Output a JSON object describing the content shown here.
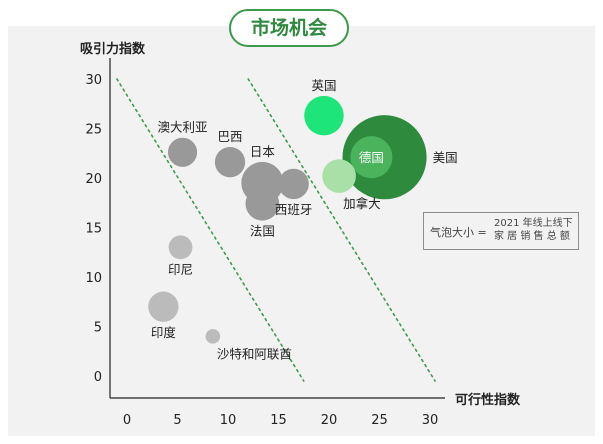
{
  "header": {
    "title": "市场机会"
  },
  "legend": {
    "label": "气泡大小 =",
    "line1": "2021 年线上线下",
    "line2": "家 居 销 售 总 额"
  },
  "chart_data": {
    "type": "scatter",
    "subtype": "bubble",
    "xlabel": "可行性指数",
    "ylabel": "吸引力指数",
    "xlim": [
      -2,
      31
    ],
    "ylim": [
      -2,
      31
    ],
    "xticks": [
      0,
      5,
      10,
      15,
      20,
      25,
      30
    ],
    "yticks": [
      0,
      5,
      10,
      15,
      20,
      25,
      30
    ],
    "grid": false,
    "points": [
      {
        "label": "英国",
        "x": 19.5,
        "y": 26.3,
        "size": 2.2,
        "color": "#1de57a",
        "label_pos": "above"
      },
      {
        "label": "美国",
        "x": 25.5,
        "y": 22.1,
        "size": 10.0,
        "color": "#2e8b3d",
        "label_pos": "right"
      },
      {
        "label": "德国",
        "x": 24.2,
        "y": 22.1,
        "size": 2.5,
        "color": "#4bb35c",
        "label_pos": "inside"
      },
      {
        "label": "加拿大",
        "x": 21.0,
        "y": 20.2,
        "size": 1.6,
        "color": "#a8e0a8",
        "label_pos": "below-right"
      },
      {
        "label": "澳大利亚",
        "x": 5.5,
        "y": 22.6,
        "size": 1.2,
        "color": "#999999",
        "label_pos": "above"
      },
      {
        "label": "巴西",
        "x": 10.2,
        "y": 21.6,
        "size": 1.3,
        "color": "#999999",
        "label_pos": "above"
      },
      {
        "label": "日本",
        "x": 13.4,
        "y": 19.5,
        "size": 2.5,
        "color": "#999999",
        "label_pos": "above"
      },
      {
        "label": "西班牙",
        "x": 16.5,
        "y": 19.4,
        "size": 1.3,
        "color": "#999999",
        "label_pos": "below"
      },
      {
        "label": "法国",
        "x": 13.4,
        "y": 17.4,
        "size": 1.6,
        "color": "#999999",
        "label_pos": "below"
      },
      {
        "label": "印尼",
        "x": 5.3,
        "y": 13.0,
        "size": 0.8,
        "color": "#bbbbbb",
        "label_pos": "below"
      },
      {
        "label": "印度",
        "x": 3.6,
        "y": 7.0,
        "size": 1.3,
        "color": "#bbbbbb",
        "label_pos": "below"
      },
      {
        "label": "沙特和阿联酋",
        "x": 8.5,
        "y": 4.0,
        "size": 0.3,
        "color": "#bbbbbb",
        "label_pos": "below-right"
      }
    ],
    "reference_lines": [
      {
        "style": "dotted",
        "color": "#3d9a4d",
        "from": [
          -1,
          30
        ],
        "to": [
          17.5,
          -0.5
        ]
      },
      {
        "style": "dotted",
        "color": "#3d9a4d",
        "from": [
          12,
          30
        ],
        "to": [
          30.5,
          -0.5
        ]
      }
    ]
  }
}
